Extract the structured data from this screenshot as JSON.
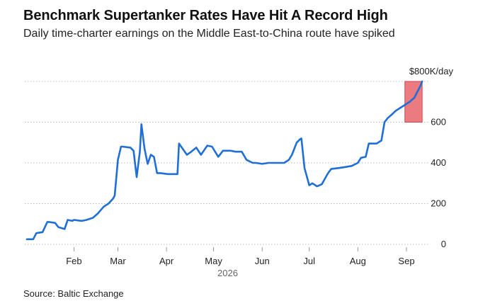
{
  "header": {
    "title": "Benchmark Supertanker Rates Have Hit A Record High",
    "subtitle": "Daily time-charter earnings on the Middle East-to-China route have spiked"
  },
  "footer": {
    "source": "Source: Baltic Exchange"
  },
  "chart_data": {
    "type": "line",
    "title": "Benchmark Supertanker Rates Have Hit A Record High",
    "subtitle": "Daily time-charter earnings on the Middle East-to-China route have spiked",
    "xlabel": "",
    "ylabel": "",
    "ylim": [
      0,
      800
    ],
    "yticks": [
      0,
      200,
      400,
      600,
      800
    ],
    "ytick_labels": [
      "0",
      "200",
      "400",
      "600",
      "$800K/day"
    ],
    "xticks": [
      {
        "label": "Feb",
        "x": "2026-02-01"
      },
      {
        "label": "Mar",
        "x": "2026-03-01"
      },
      {
        "label": "Apr",
        "x": "2026-04-01"
      },
      {
        "label": "May",
        "x": "2026-05-01"
      },
      {
        "label": "Jun",
        "x": "2026-06-01"
      },
      {
        "label": "Jul",
        "x": "2026-07-01"
      },
      {
        "label": "Aug",
        "x": "2026-08-01"
      },
      {
        "label": "Sep",
        "x": "2026-09-01"
      }
    ],
    "year_label": "2026",
    "xlim": [
      "2026-01-02",
      "2026-09-15"
    ],
    "highlight": {
      "x_start": "2026-08-31",
      "x_end": "2026-09-11",
      "y_start": 600,
      "y_end": 800,
      "color": "#e8636b"
    },
    "line_color": "#1f6fd6",
    "grid": "horizontal-dotted",
    "source": "Source: Baltic Exchange",
    "series": [
      {
        "x": [
          "2026-01-02",
          "2026-01-06",
          "2026-01-08",
          "2026-01-12",
          "2026-01-15",
          "2026-01-16",
          "2026-01-20",
          "2026-01-22",
          "2026-01-26",
          "2026-01-28",
          "2026-01-31",
          "2026-02-01",
          "2026-02-06",
          "2026-02-09",
          "2026-02-13",
          "2026-02-16",
          "2026-02-20",
          "2026-02-23",
          "2026-02-26",
          "2026-02-27",
          "2026-03-01",
          "2026-03-03",
          "2026-03-04",
          "2026-03-09",
          "2026-03-11",
          "2026-03-13",
          "2026-03-15",
          "2026-03-16",
          "2026-03-18",
          "2026-03-20",
          "2026-03-22",
          "2026-03-24",
          "2026-03-26",
          "2026-03-28",
          "2026-04-02",
          "2026-04-06",
          "2026-04-07",
          "2026-04-08",
          "2026-04-09",
          "2026-04-14",
          "2026-04-16",
          "2026-04-20",
          "2026-04-23",
          "2026-04-27",
          "2026-04-30",
          "2026-05-04",
          "2026-05-07",
          "2026-05-12",
          "2026-05-15",
          "2026-05-19",
          "2026-05-22",
          "2026-05-26",
          "2026-05-28",
          "2026-06-01",
          "2026-06-05",
          "2026-06-10",
          "2026-06-15",
          "2026-06-18",
          "2026-06-20",
          "2026-06-23",
          "2026-06-25",
          "2026-06-26",
          "2026-06-28",
          "2026-07-01",
          "2026-07-03",
          "2026-07-06",
          "2026-07-09",
          "2026-07-13",
          "2026-07-15",
          "2026-07-20",
          "2026-07-24",
          "2026-07-28",
          "2026-08-01",
          "2026-08-03",
          "2026-08-06",
          "2026-08-08",
          "2026-08-11",
          "2026-08-13",
          "2026-08-16",
          "2026-08-18",
          "2026-08-20",
          "2026-08-23",
          "2026-08-25",
          "2026-08-28",
          "2026-08-31",
          "2026-09-03",
          "2026-09-06",
          "2026-09-08",
          "2026-09-10",
          "2026-09-11"
        ],
        "y": [
          25,
          25,
          55,
          60,
          110,
          110,
          105,
          85,
          75,
          120,
          115,
          120,
          115,
          120,
          130,
          150,
          185,
          200,
          225,
          240,
          415,
          480,
          480,
          475,
          460,
          330,
          455,
          590,
          470,
          395,
          440,
          430,
          350,
          350,
          345,
          345,
          345,
          345,
          495,
          440,
          450,
          475,
          440,
          485,
          480,
          430,
          460,
          460,
          455,
          455,
          415,
          400,
          400,
          395,
          400,
          400,
          400,
          415,
          440,
          500,
          515,
          520,
          375,
          290,
          300,
          285,
          295,
          350,
          370,
          375,
          380,
          385,
          400,
          425,
          430,
          495,
          495,
          495,
          510,
          600,
          620,
          640,
          655,
          670,
          685,
          700,
          720,
          750,
          780,
          800
        ]
      }
    ]
  }
}
